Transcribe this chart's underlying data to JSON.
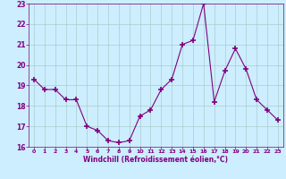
{
  "x": [
    0,
    1,
    2,
    3,
    4,
    5,
    6,
    7,
    8,
    9,
    10,
    11,
    12,
    13,
    14,
    15,
    16,
    17,
    18,
    19,
    20,
    21,
    22,
    23
  ],
  "y": [
    19.3,
    18.8,
    18.8,
    18.3,
    18.3,
    17.0,
    16.8,
    16.3,
    16.2,
    16.3,
    17.5,
    17.8,
    18.8,
    19.3,
    21.0,
    21.2,
    23.0,
    18.2,
    19.7,
    20.8,
    19.8,
    18.3,
    17.8,
    17.3
  ],
  "line_color": "#800080",
  "marker": "+",
  "marker_color": "#800080",
  "bg_color": "#cceeff",
  "grid_color": "#aacccc",
  "xlabel": "Windchill (Refroidissement éolien,°C)",
  "xlabel_color": "#800080",
  "tick_color": "#800080",
  "ylim": [
    16,
    23
  ],
  "xlim": [
    -0.5,
    23.5
  ],
  "yticks": [
    16,
    17,
    18,
    19,
    20,
    21,
    22,
    23
  ],
  "xticks": [
    0,
    1,
    2,
    3,
    4,
    5,
    6,
    7,
    8,
    9,
    10,
    11,
    12,
    13,
    14,
    15,
    16,
    17,
    18,
    19,
    20,
    21,
    22,
    23
  ],
  "xtick_labels": [
    "0",
    "1",
    "2",
    "3",
    "4",
    "5",
    "6",
    "7",
    "8",
    "9",
    "10",
    "11",
    "12",
    "13",
    "14",
    "15",
    "16",
    "17",
    "18",
    "19",
    "20",
    "21",
    "22",
    "23"
  ]
}
